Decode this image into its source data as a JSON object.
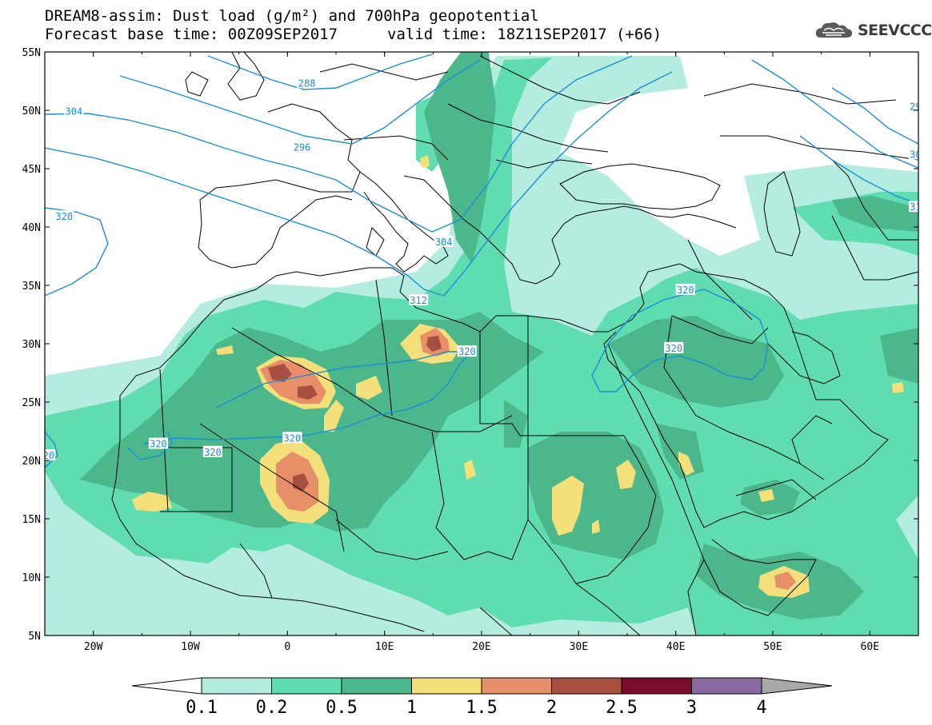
{
  "header": {
    "title_line1": "DREAM8-assim: Dust load (g/m²) and 700hPa geopotential",
    "title_line2a": "Forecast base time: 00Z09SEP2017",
    "title_line2b": "valid time: 18Z11SEP2017 (+66)",
    "logo_text": "SEEVCCC",
    "logo_icon": "cloud-logo-icon"
  },
  "axes": {
    "lat_labels": [
      "55N",
      "50N",
      "45N",
      "40N",
      "35N",
      "30N",
      "25N",
      "20N",
      "15N",
      "10N",
      "5N"
    ],
    "lat_values": [
      55,
      50,
      45,
      40,
      35,
      30,
      25,
      20,
      15,
      10,
      5
    ],
    "lon_labels": [
      "20W",
      "10W",
      "0",
      "10E",
      "20E",
      "30E",
      "40E",
      "50E",
      "60E"
    ],
    "lon_values": [
      -20,
      -10,
      0,
      10,
      20,
      30,
      40,
      50,
      60
    ],
    "lon_range": [
      -25,
      65
    ],
    "lat_range": [
      5,
      55
    ]
  },
  "geopotential_labels": [
    {
      "text": "288",
      "lon": 2,
      "lat": 52.3
    },
    {
      "text": "304",
      "lon": -22,
      "lat": 49.9
    },
    {
      "text": "296",
      "lon": 1.5,
      "lat": 46.8
    },
    {
      "text": "320",
      "lon": -23,
      "lat": 40.9
    },
    {
      "text": "304",
      "lon": 16.1,
      "lat": 38.7
    },
    {
      "text": "312",
      "lon": 13.5,
      "lat": 33.7
    },
    {
      "text": "320",
      "lon": 18.5,
      "lat": 29.3
    },
    {
      "text": "320",
      "lon": 41,
      "lat": 34.6
    },
    {
      "text": "320",
      "lon": 39.8,
      "lat": 29.6
    },
    {
      "text": "320",
      "lon": -13.3,
      "lat": 21.4
    },
    {
      "text": "320",
      "lon": -7.7,
      "lat": 20.7
    },
    {
      "text": "320",
      "lon": 0.5,
      "lat": 21.9
    },
    {
      "text": "20",
      "lon": -24.6,
      "lat": 20.4
    },
    {
      "text": "29",
      "lon": 64.7,
      "lat": 50.3
    },
    {
      "text": "30",
      "lon": 64.7,
      "lat": 46.2
    },
    {
      "text": "31",
      "lon": 64.7,
      "lat": 41.7
    }
  ],
  "colorbar": {
    "labels": [
      "0.1",
      "0.2",
      "0.5",
      "1",
      "1.5",
      "2",
      "2.5",
      "3",
      "4"
    ],
    "colors": [
      "#b4ede0",
      "#5fdcb0",
      "#4db78c",
      "#f3e07a",
      "#e78f68",
      "#a94f40",
      "#7a0d2c",
      "#8a6a9e",
      "#a8a8a8"
    ]
  }
}
